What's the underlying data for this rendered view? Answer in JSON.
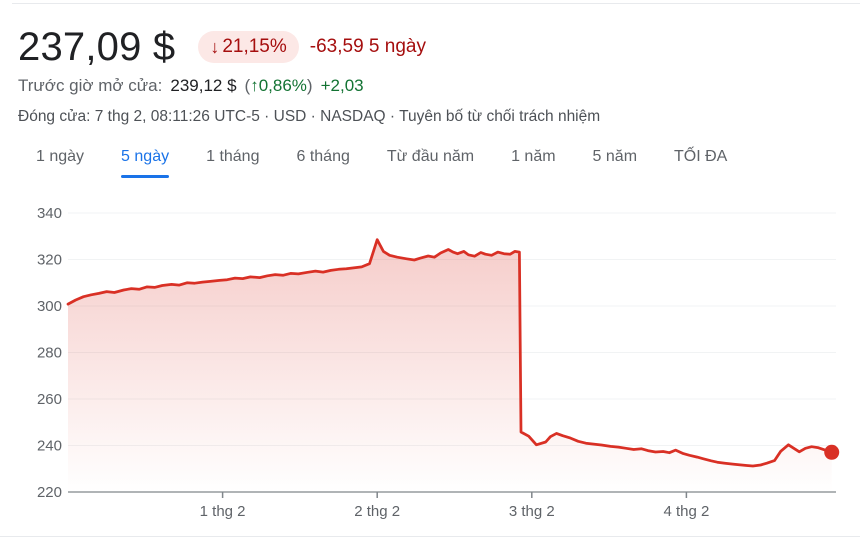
{
  "header": {
    "price": "237,09 $",
    "change_pill": {
      "arrow": "↓",
      "percent": "21,15%"
    },
    "change_text": "-63,59 5 ngày",
    "premarket": {
      "label": "Trước giờ mở cửa:",
      "price": "239,12 $",
      "paren_open": "(",
      "arrow": "↑",
      "percent": "0,86%",
      "paren_close": ")",
      "change": "+2,03"
    },
    "close_info": {
      "prefix": "Đóng cửa: 7 thg 2, 08:11:26 UTC-5 · USD · NASDAQ · ",
      "disclaimer": "Tuyên bố từ chối trách nhiệm"
    }
  },
  "tabs": [
    {
      "label": "1 ngày",
      "active": false
    },
    {
      "label": "5 ngày",
      "active": true
    },
    {
      "label": "1 tháng",
      "active": false
    },
    {
      "label": "6 tháng",
      "active": false
    },
    {
      "label": "Từ đầu năm",
      "active": false
    },
    {
      "label": "1 năm",
      "active": false
    },
    {
      "label": "5 năm",
      "active": false
    },
    {
      "label": "TỐI ĐA",
      "active": false
    }
  ],
  "colors": {
    "accent_blue": "#1a73e8",
    "negative_red": "#a50e0e",
    "pill_bg": "#fce8e6",
    "positive_green": "#137333",
    "line_red": "#d93025",
    "grid": "#f1f3f4",
    "axis": "#80868b",
    "tick_text": "#5f6368"
  },
  "chart_data": {
    "type": "area",
    "title": "5-day stock price",
    "xlabel": "",
    "ylabel": "",
    "ylim": [
      220,
      340
    ],
    "y_ticks": [
      340,
      320,
      300,
      280,
      260,
      240,
      220
    ],
    "x_ticks": [
      {
        "t": 1,
        "label": "1 thg 2"
      },
      {
        "t": 2,
        "label": "2 thg 2"
      },
      {
        "t": 3,
        "label": "3 thg 2"
      },
      {
        "t": 4,
        "label": "4 thg 2"
      }
    ],
    "grid": true,
    "legend": "none",
    "line_color": "#d93025",
    "fill_opacity_top": 0.27,
    "end_dot": {
      "t": 4.94,
      "price": 237.09
    },
    "points": [
      [
        0.0,
        300.8
      ],
      [
        0.05,
        302.6
      ],
      [
        0.1,
        304.0
      ],
      [
        0.15,
        304.8
      ],
      [
        0.2,
        305.4
      ],
      [
        0.25,
        306.2
      ],
      [
        0.3,
        305.8
      ],
      [
        0.36,
        306.9
      ],
      [
        0.41,
        307.5
      ],
      [
        0.46,
        307.2
      ],
      [
        0.51,
        308.2
      ],
      [
        0.56,
        308.0
      ],
      [
        0.61,
        308.8
      ],
      [
        0.67,
        309.3
      ],
      [
        0.72,
        309.0
      ],
      [
        0.77,
        310.0
      ],
      [
        0.82,
        309.8
      ],
      [
        0.87,
        310.3
      ],
      [
        0.92,
        310.6
      ],
      [
        0.98,
        311.0
      ],
      [
        1.03,
        311.3
      ],
      [
        1.08,
        312.0
      ],
      [
        1.13,
        311.8
      ],
      [
        1.18,
        312.5
      ],
      [
        1.24,
        312.2
      ],
      [
        1.29,
        313.0
      ],
      [
        1.34,
        313.5
      ],
      [
        1.39,
        313.2
      ],
      [
        1.44,
        314.0
      ],
      [
        1.49,
        313.8
      ],
      [
        1.55,
        314.5
      ],
      [
        1.6,
        315.0
      ],
      [
        1.65,
        314.6
      ],
      [
        1.7,
        315.3
      ],
      [
        1.75,
        315.8
      ],
      [
        1.8,
        316.0
      ],
      [
        1.86,
        316.5
      ],
      [
        1.9,
        316.8
      ],
      [
        1.95,
        318.2
      ],
      [
        2.0,
        328.5
      ],
      [
        2.04,
        323.5
      ],
      [
        2.08,
        321.8
      ],
      [
        2.13,
        321.0
      ],
      [
        2.19,
        320.3
      ],
      [
        2.24,
        319.8
      ],
      [
        2.28,
        320.6
      ],
      [
        2.33,
        321.5
      ],
      [
        2.37,
        321.0
      ],
      [
        2.41,
        322.8
      ],
      [
        2.46,
        324.3
      ],
      [
        2.49,
        323.2
      ],
      [
        2.52,
        322.5
      ],
      [
        2.56,
        323.5
      ],
      [
        2.59,
        322.0
      ],
      [
        2.63,
        321.4
      ],
      [
        2.67,
        323.0
      ],
      [
        2.7,
        322.3
      ],
      [
        2.74,
        321.8
      ],
      [
        2.78,
        323.2
      ],
      [
        2.82,
        322.5
      ],
      [
        2.86,
        322.3
      ],
      [
        2.89,
        323.5
      ],
      [
        2.92,
        323.2
      ],
      [
        2.93,
        245.8
      ],
      [
        2.98,
        244.0
      ],
      [
        3.03,
        240.3
      ],
      [
        3.09,
        241.5
      ],
      [
        3.12,
        243.8
      ],
      [
        3.16,
        245.2
      ],
      [
        3.2,
        244.2
      ],
      [
        3.25,
        243.2
      ],
      [
        3.3,
        241.8
      ],
      [
        3.35,
        241.0
      ],
      [
        3.4,
        240.6
      ],
      [
        3.45,
        240.2
      ],
      [
        3.51,
        239.6
      ],
      [
        3.56,
        239.3
      ],
      [
        3.61,
        238.8
      ],
      [
        3.66,
        238.3
      ],
      [
        3.71,
        238.6
      ],
      [
        3.75,
        237.8
      ],
      [
        3.8,
        237.2
      ],
      [
        3.85,
        237.4
      ],
      [
        3.89,
        236.9
      ],
      [
        3.93,
        238.0
      ],
      [
        3.98,
        236.5
      ],
      [
        4.02,
        235.8
      ],
      [
        4.07,
        235.0
      ],
      [
        4.11,
        234.3
      ],
      [
        4.16,
        233.4
      ],
      [
        4.2,
        232.8
      ],
      [
        4.25,
        232.4
      ],
      [
        4.3,
        232.0
      ],
      [
        4.34,
        231.7
      ],
      [
        4.39,
        231.4
      ],
      [
        4.43,
        231.2
      ],
      [
        4.48,
        231.6
      ],
      [
        4.52,
        232.4
      ],
      [
        4.57,
        233.5
      ],
      [
        4.61,
        237.5
      ],
      [
        4.66,
        240.3
      ],
      [
        4.7,
        238.6
      ],
      [
        4.73,
        237.3
      ],
      [
        4.77,
        238.8
      ],
      [
        4.81,
        239.5
      ],
      [
        4.85,
        239.1
      ],
      [
        4.89,
        238.2
      ],
      [
        4.94,
        237.09
      ]
    ]
  }
}
